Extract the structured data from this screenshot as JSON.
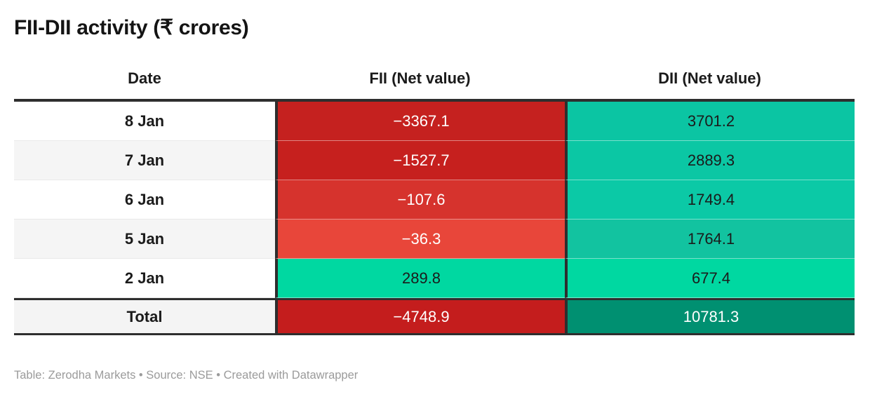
{
  "title": "FII-DII activity (₹ crores)",
  "footer": "Table: Zerodha Markets • Source: NSE • Created with Datawrapper",
  "colors": {
    "negative_strong": "#c5211f",
    "negative_mid": "#d6332d",
    "negative_light": "#e8463a",
    "positive_bright": "#00d8a1",
    "positive_teal": "#0cc4a3",
    "positive_dark": "#009071",
    "border_dark": "#2e2e2e",
    "row_alt": "#f5f5f5"
  },
  "table": {
    "columns": [
      "Date",
      "FII (Net value)",
      "DII (Net value)"
    ],
    "rows": [
      {
        "date": "8 Jan",
        "fii": "−3367.1",
        "dii": "3701.2",
        "date_bg": "#ffffff",
        "fii_bg": "#c5211f",
        "fii_color": "#ffffff",
        "dii_bg": "#0bc5a3",
        "dii_color": "#1b1b1b"
      },
      {
        "date": "7 Jan",
        "fii": "−1527.7",
        "dii": "2889.3",
        "date_bg": "#f5f5f5",
        "fii_bg": "#c6201e",
        "fii_color": "#ffffff",
        "dii_bg": "#0bc7a4",
        "dii_color": "#1b1b1b"
      },
      {
        "date": "6 Jan",
        "fii": "−107.6",
        "dii": "1749.4",
        "date_bg": "#ffffff",
        "fii_bg": "#d6332d",
        "fii_color": "#ffffff",
        "dii_bg": "#0bc9a6",
        "dii_color": "#1b1b1b"
      },
      {
        "date": "5 Jan",
        "fii": "−36.3",
        "dii": "1764.1",
        "date_bg": "#f5f5f5",
        "fii_bg": "#e8463a",
        "fii_color": "#ffffff",
        "dii_bg": "#12c3a0",
        "dii_color": "#1b1b1b"
      },
      {
        "date": "2 Jan",
        "fii": "289.8",
        "dii": "677.4",
        "date_bg": "#ffffff",
        "fii_bg": "#00d8a1",
        "fii_color": "#1b1b1b",
        "dii_bg": "#00d8a1",
        "dii_color": "#1b1b1b"
      }
    ],
    "total": {
      "label": "Total",
      "fii": "−4748.9",
      "dii": "10781.3",
      "date_bg": "#f4f4f4",
      "fii_bg": "#c41d1d",
      "fii_color": "#ffffff",
      "dii_bg": "#009071",
      "dii_color": "#ffffff"
    }
  },
  "chart_data": {
    "type": "table",
    "title": "FII-DII activity (₹ crores)",
    "categories": [
      "8 Jan",
      "7 Jan",
      "6 Jan",
      "5 Jan",
      "2 Jan"
    ],
    "series": [
      {
        "name": "FII (Net value)",
        "values": [
          -3367.1,
          -1527.7,
          -107.6,
          -36.3,
          289.8
        ],
        "total": -4748.9
      },
      {
        "name": "DII (Net value)",
        "values": [
          3701.2,
          2889.3,
          1749.4,
          1764.1,
          677.4
        ],
        "total": 10781.3
      }
    ],
    "notes": "Table: Zerodha Markets • Source: NSE • Created with Datawrapper",
    "color_encoding": "heatmap: negative values red (darker = larger magnitude), positive values green/teal, totals in saturated dark shades"
  }
}
